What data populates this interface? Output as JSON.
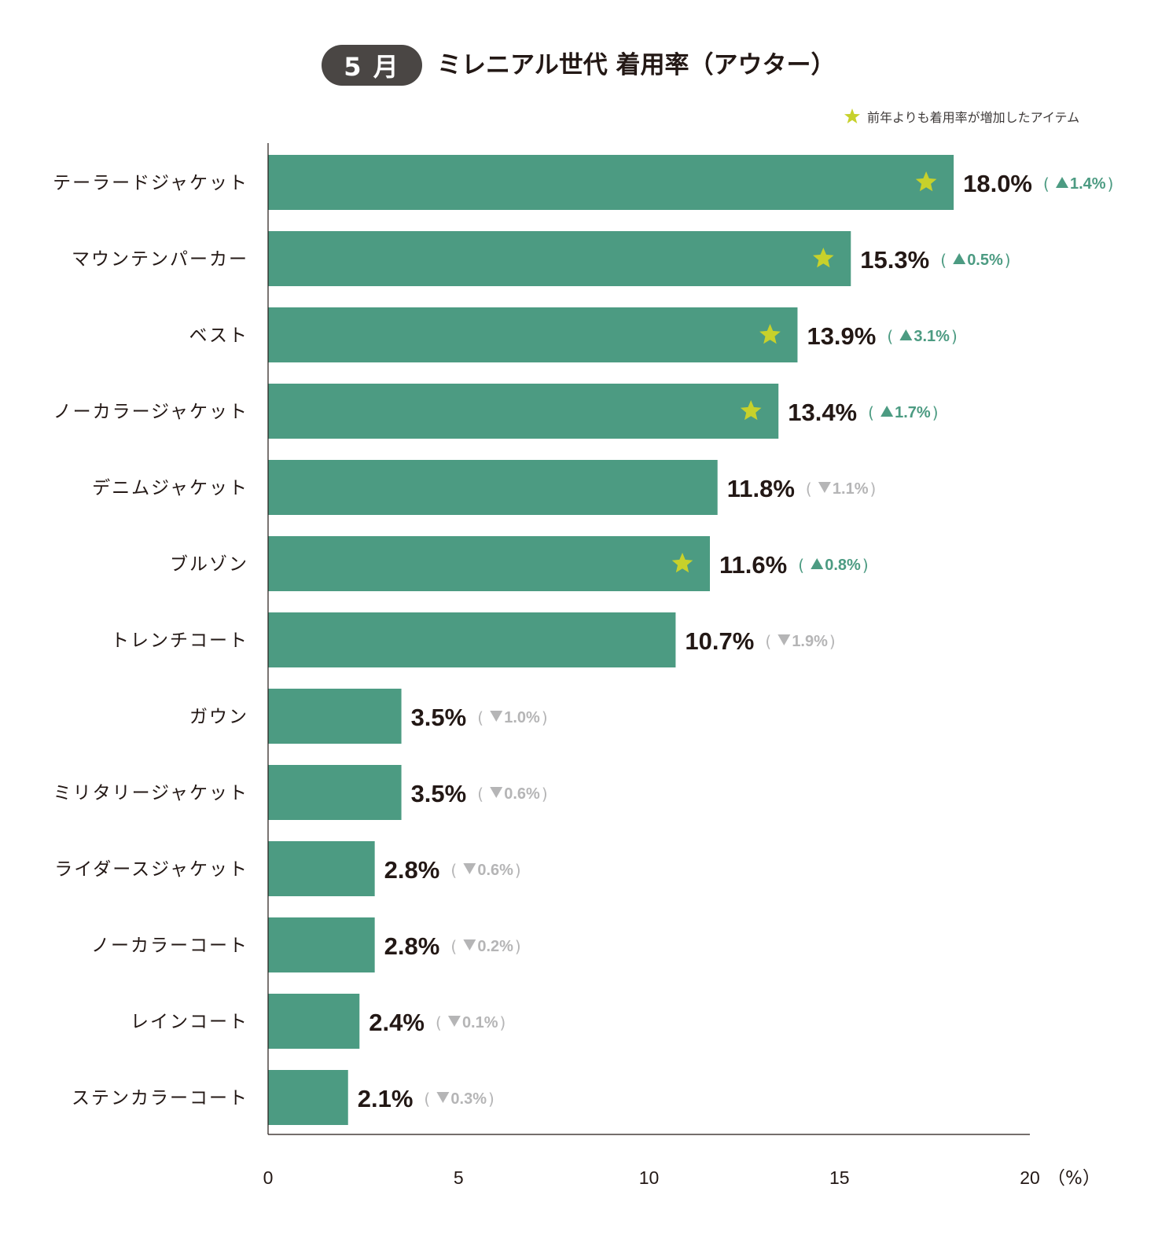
{
  "header": {
    "month_badge": "5 月",
    "title": "ミレニアル世代 着用率（アウター）"
  },
  "legend": {
    "star_label": "前年よりも着用率が増加したアイテム",
    "icon": "star-icon"
  },
  "colors": {
    "bar": "#4c9b82",
    "star": "#c7d12b",
    "up": "#4c9b82",
    "down": "#b5b5b6",
    "value_text": "#231815",
    "axis": "#231815"
  },
  "chart_data": {
    "type": "bar",
    "orientation": "horizontal",
    "title": "ミレニアル世代 着用率（アウター）",
    "xlabel": "（%）",
    "xlim": [
      0,
      20
    ],
    "xticks": [
      0,
      5,
      10,
      15,
      20
    ],
    "xtick_labels": [
      "0",
      "5",
      "10",
      "15",
      "20"
    ],
    "categories": [
      "テーラードジャケット",
      "マウンテンパーカー",
      "ベスト",
      "ノーカラージャケット",
      "デニムジャケット",
      "ブルゾン",
      "トレンチコート",
      "ガウン",
      "ミリタリージャケット",
      "ライダースジャケット",
      "ノーカラーコート",
      "レインコート",
      "ステンカラーコート"
    ],
    "values": [
      18.0,
      15.3,
      13.9,
      13.4,
      11.8,
      11.6,
      10.7,
      3.5,
      3.5,
      2.8,
      2.8,
      2.4,
      2.1
    ],
    "value_labels": [
      "18.0%",
      "15.3%",
      "13.9%",
      "13.4%",
      "11.8%",
      "11.6%",
      "10.7%",
      "3.5%",
      "3.5%",
      "2.8%",
      "2.8%",
      "2.4%",
      "2.1%"
    ],
    "change_direction": [
      "up",
      "up",
      "up",
      "up",
      "down",
      "up",
      "down",
      "down",
      "down",
      "down",
      "down",
      "down",
      "down"
    ],
    "change_values": [
      1.4,
      0.5,
      3.1,
      1.7,
      1.1,
      0.8,
      1.9,
      1.0,
      0.6,
      0.6,
      0.2,
      0.1,
      0.3
    ],
    "change_labels": [
      "1.4%",
      "0.5%",
      "3.1%",
      "1.7%",
      "1.1%",
      "0.8%",
      "1.9%",
      "1.0%",
      "0.6%",
      "0.6%",
      "0.2%",
      "0.1%",
      "0.3%"
    ],
    "starred": [
      true,
      true,
      true,
      true,
      false,
      true,
      false,
      false,
      false,
      false,
      false,
      false,
      false
    ]
  }
}
